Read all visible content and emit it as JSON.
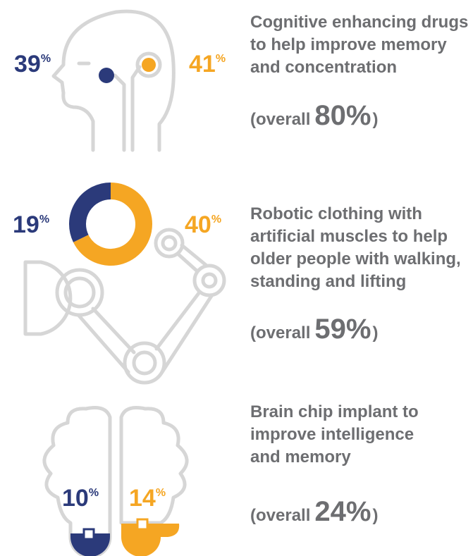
{
  "unit": "%",
  "overall_open": "(overall",
  "overall_close": ")",
  "items": [
    {
      "description": [
        "Cognitive enhancing drugs",
        "to help improve memory",
        "and concentration"
      ],
      "left": 39,
      "right": 41,
      "overall": 80
    },
    {
      "description": [
        "Robotic clothing with",
        "artificial muscles to help",
        "older people with walking,",
        "standing and lifting"
      ],
      "left": 19,
      "right": 40,
      "overall": 59
    },
    {
      "description": [
        "Brain chip implant to",
        "improve intelligence",
        "and memory"
      ],
      "left": 10,
      "right": 14,
      "overall": 24
    }
  ]
}
